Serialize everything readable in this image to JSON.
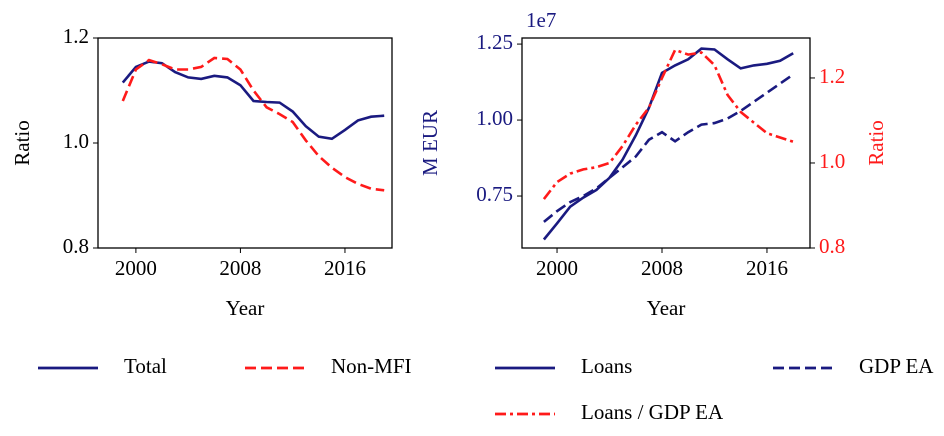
{
  "chart_data": [
    {
      "type": "line",
      "xlabel": "Year",
      "ylabel": "Ratio",
      "x": [
        1999,
        2000,
        2001,
        2002,
        2003,
        2004,
        2005,
        2006,
        2007,
        2008,
        2009,
        2010,
        2011,
        2012,
        2013,
        2014,
        2015,
        2016,
        2017,
        2018,
        2019
      ],
      "xlim": [
        1997.1,
        2019.6
      ],
      "xticks": [
        2000,
        2008,
        2016
      ],
      "ylim": [
        0.8,
        1.2
      ],
      "yticks": [
        {
          "value": 0.8,
          "label": "0.8"
        },
        {
          "value": 1.0,
          "label": "1.0"
        },
        {
          "value": 1.2,
          "label": "1.2"
        }
      ],
      "series": [
        {
          "name": "Total",
          "color": "#1a1a80",
          "style": "solid",
          "values": [
            1.115,
            1.145,
            1.155,
            1.152,
            1.135,
            1.125,
            1.122,
            1.128,
            1.125,
            1.11,
            1.08,
            1.078,
            1.077,
            1.06,
            1.032,
            1.012,
            1.008,
            1.025,
            1.043,
            1.05,
            1.052
          ]
        },
        {
          "name": "Non-MFI",
          "color": "#ff1a1a",
          "style": "dashed",
          "values": [
            1.08,
            1.14,
            1.158,
            1.15,
            1.14,
            1.14,
            1.145,
            1.162,
            1.16,
            1.14,
            1.1,
            1.068,
            1.055,
            1.04,
            1.005,
            0.975,
            0.953,
            0.935,
            0.922,
            0.913,
            0.91
          ]
        }
      ]
    },
    {
      "type": "line",
      "xlabel": "Year",
      "ylabel": "M EUR",
      "y2label": "Ratio",
      "offset_text": "1e7",
      "y_color": "#1a1a80",
      "y2_color": "#ff1a1a",
      "x": [
        1999,
        2000,
        2001,
        2002,
        2003,
        2004,
        2005,
        2006,
        2007,
        2008,
        2009,
        2010,
        2011,
        2012,
        2013,
        2014,
        2015,
        2016,
        2017,
        2018
      ],
      "xlim": [
        1997.33,
        2019.28
      ],
      "xticks": [
        2000,
        2008,
        2016
      ],
      "ylim": [
        0.579,
        1.27
      ],
      "yticks": [
        0.75,
        {
          "value": 1.0,
          "label": "1.00"
        },
        1.25
      ],
      "y2lim": [
        0.8,
        1.294
      ],
      "y2ticks": [
        {
          "value": 0.8,
          "label": "0.8"
        },
        {
          "value": 1.0,
          "label": "1.0"
        },
        {
          "value": 1.2,
          "label": "1.2"
        }
      ],
      "series": [
        {
          "name": "Loans",
          "color": "#1a1a80",
          "style": "solid",
          "values": [
            0.607,
            0.66,
            0.715,
            0.745,
            0.77,
            0.81,
            0.87,
            0.95,
            1.04,
            1.155,
            1.18,
            1.2,
            1.235,
            1.232,
            1.2,
            1.17,
            1.18,
            1.185,
            1.195,
            1.22
          ]
        },
        {
          "name": "GDP EA",
          "color": "#1a1a80",
          "style": "dashed",
          "values": [
            0.665,
            0.7,
            0.73,
            0.75,
            0.775,
            0.81,
            0.845,
            0.88,
            0.935,
            0.96,
            0.93,
            0.96,
            0.985,
            0.99,
            1.005,
            1.03,
            1.06,
            1.09,
            1.12,
            1.15
          ]
        },
        {
          "name": "Loans / GDP EA",
          "color": "#ff1a1a",
          "style": "dashdot",
          "axis": "y2",
          "values": [
            0.915,
            0.955,
            0.975,
            0.985,
            0.99,
            1.0,
            1.04,
            1.09,
            1.13,
            1.2,
            1.266,
            1.255,
            1.26,
            1.23,
            1.16,
            1.12,
            1.095,
            1.07,
            1.06,
            1.05
          ]
        }
      ]
    }
  ]
}
